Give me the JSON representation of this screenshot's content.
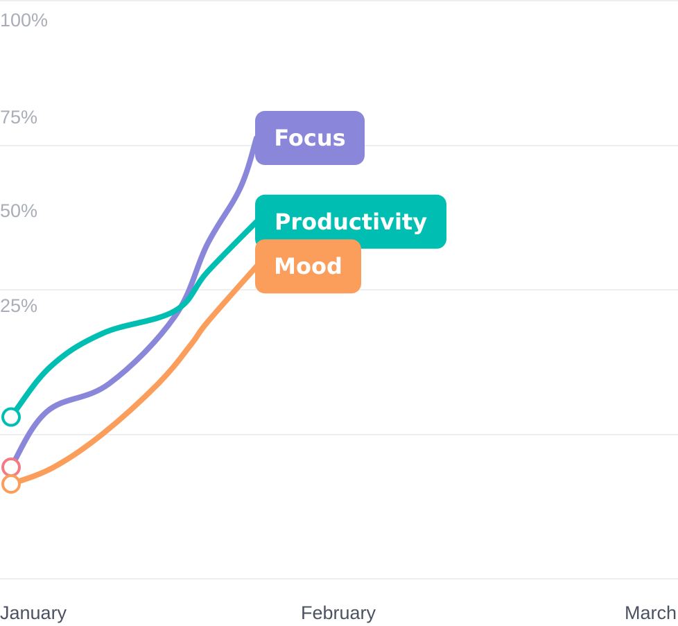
{
  "chart_data": {
    "type": "line",
    "categories": [
      "January",
      "February",
      "March"
    ],
    "ylim": [
      0,
      100
    ],
    "y_ticks": [
      "100%",
      "75%",
      "50%",
      "25%"
    ],
    "grid": true,
    "series": [
      {
        "name": "Focus",
        "color": "#8a87db",
        "x": [
          0,
          0.11,
          0.3,
          0.5,
          0.6,
          0.7,
          0.75
        ],
        "y": [
          20,
          30,
          35,
          47,
          60,
          70,
          79
        ]
      },
      {
        "name": "Productivity",
        "color": "#00bfb2",
        "x": [
          0,
          0.12,
          0.28,
          0.5,
          0.6,
          0.75
        ],
        "y": [
          29,
          38,
          44,
          48,
          55,
          64
        ]
      },
      {
        "name": "Mood",
        "color": "#fb9e5c",
        "x": [
          0,
          0.13,
          0.28,
          0.45,
          0.55,
          0.6,
          0.75
        ],
        "y": [
          17,
          20,
          26,
          35,
          42,
          46,
          56
        ]
      }
    ],
    "start_marker_colors": [
      "#f47a82",
      "#00bfb2",
      "#fb9e5c"
    ]
  }
}
